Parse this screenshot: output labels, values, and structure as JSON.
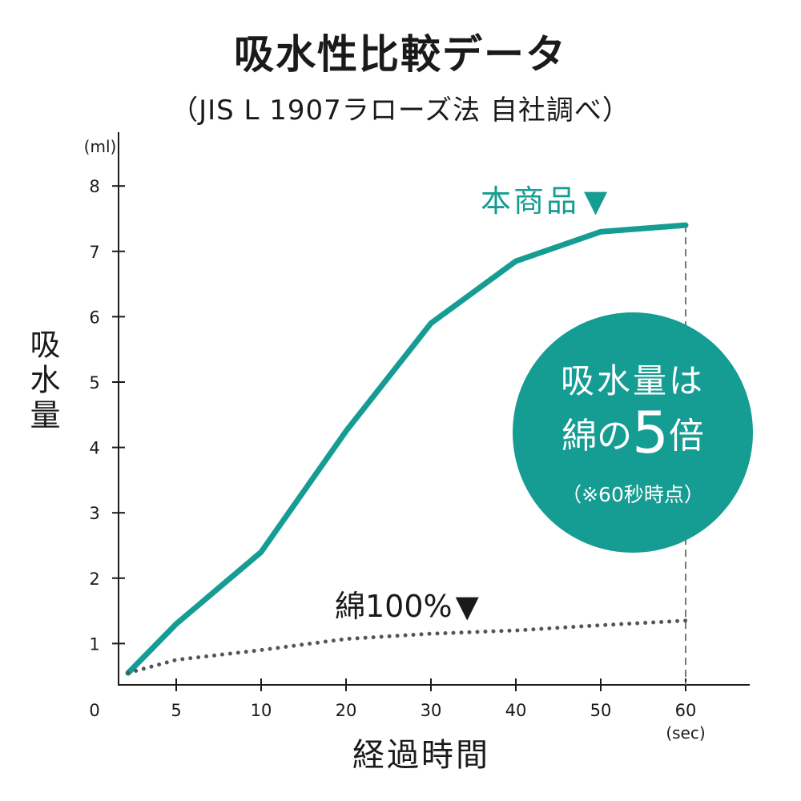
{
  "title": "吸水性比較データ",
  "subtitle": "（JIS L 1907ラローズ法 自社調べ）",
  "chart_data": {
    "type": "line",
    "title": "吸水性比較データ",
    "subtitle": "（JIS L 1907ラローズ法 自社調べ）",
    "xlabel": "経過時間",
    "x_unit": "(sec)",
    "ylabel": "吸水量",
    "y_unit": "(ml)",
    "x": [
      0,
      5,
      10,
      20,
      30,
      40,
      50,
      60
    ],
    "x_tick_labels": [
      "0",
      "5",
      "10",
      "20",
      "30",
      "40",
      "50",
      "60"
    ],
    "y_tick_labels": [
      "1",
      "2",
      "3",
      "4",
      "5",
      "6",
      "7",
      "8"
    ],
    "ylim": [
      0,
      8.5
    ],
    "grid": false,
    "series": [
      {
        "name": "本商品",
        "color": "#159c93",
        "style": "solid",
        "values": [
          0.55,
          1.3,
          2.4,
          4.25,
          5.9,
          6.85,
          7.3,
          7.4
        ]
      },
      {
        "name": "綿100%",
        "color": "#555555",
        "style": "dotted",
        "values": [
          0.55,
          0.75,
          0.9,
          1.07,
          1.15,
          1.2,
          1.28,
          1.35
        ]
      }
    ],
    "series_markers": [
      "▼",
      "▼"
    ],
    "annotation": {
      "line1": "吸水量は",
      "line2_a": "綿の",
      "line2_b": "5",
      "line2_c": "倍",
      "note": "（※60秒時点）"
    }
  }
}
